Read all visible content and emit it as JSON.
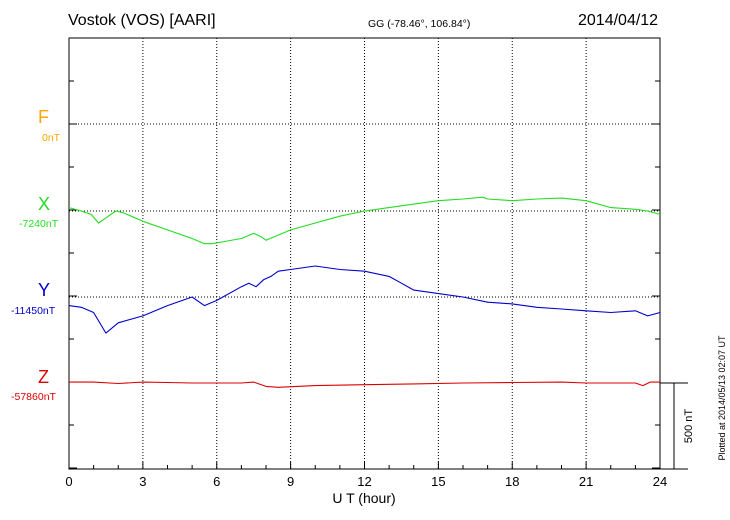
{
  "header": {
    "station": "Vostok (VOS)  [AARI]",
    "coords": "GG (-78.46°, 106.84°)",
    "date": "2014/04/12"
  },
  "colors": {
    "F": "#ffa500",
    "X": "#22dd22",
    "Y": "#0000cc",
    "Z": "#dd0000"
  },
  "channels": [
    {
      "key": "F",
      "label": "F",
      "base": "0nT"
    },
    {
      "key": "X",
      "label": "X",
      "base": "-7240nT"
    },
    {
      "key": "Y",
      "label": "Y",
      "base": "-11450nT"
    },
    {
      "key": "Z",
      "label": "Z",
      "base": "-57860nT"
    }
  ],
  "scale_label": "500 nT",
  "plotted_note": "Plotted at 2014/05/13 02:07 UT",
  "chart_data": {
    "type": "line",
    "xlabel": "U T (hour)",
    "xlim": [
      0,
      24
    ],
    "xticks": [
      0,
      3,
      6,
      9,
      12,
      15,
      18,
      21,
      24
    ],
    "xtick_labels": [
      "0",
      "3",
      "6",
      "9",
      "12",
      "15",
      "18",
      "21",
      "24"
    ],
    "ylim_offset_nT": [
      -250,
      1750
    ],
    "grid": true,
    "series": [
      {
        "name": "X",
        "baseline_nT": -7240,
        "x": [
          0,
          0.5,
          0.9,
          1.2,
          1.5,
          1.9,
          2.2,
          3,
          4,
          5,
          5.5,
          5.8,
          6.2,
          7,
          7.5,
          7.8,
          8,
          8.5,
          9,
          10,
          11,
          12,
          13,
          14,
          15,
          16,
          16.8,
          17,
          18,
          19,
          20,
          21,
          22,
          23,
          23.5,
          24
        ],
        "y_offset_nT": [
          20,
          0,
          -20,
          -70,
          -40,
          0,
          -10,
          -60,
          -110,
          -160,
          -190,
          -190,
          -180,
          -160,
          -130,
          -150,
          -170,
          -140,
          -110,
          -70,
          -30,
          0,
          20,
          40,
          60,
          70,
          80,
          70,
          60,
          70,
          75,
          60,
          20,
          10,
          0,
          -20
        ]
      },
      {
        "name": "Y",
        "baseline_nT": -11450,
        "x": [
          0,
          0.5,
          1,
          1.5,
          2,
          3,
          4,
          5,
          5.5,
          6,
          7,
          7.3,
          7.6,
          7.9,
          8.2,
          8.5,
          9,
          10,
          11,
          12,
          13,
          13.5,
          14,
          15,
          16,
          17,
          18,
          19,
          20,
          21,
          22,
          23,
          23.5,
          24
        ],
        "y_offset_nT": [
          -50,
          -60,
          -90,
          -210,
          -150,
          -110,
          -50,
          0,
          -50,
          -20,
          60,
          80,
          60,
          100,
          120,
          150,
          160,
          180,
          160,
          150,
          120,
          80,
          40,
          20,
          0,
          -30,
          -40,
          -60,
          -70,
          -80,
          -90,
          -80,
          -110,
          -90
        ]
      },
      {
        "name": "Z",
        "baseline_nT": -57860,
        "x": [
          0,
          1,
          2,
          3,
          4,
          5,
          6,
          7,
          7.5,
          8,
          8.5,
          10,
          12,
          14,
          16,
          18,
          20,
          21,
          22,
          23,
          23.3,
          23.6,
          24
        ],
        "y_offset_nT": [
          5,
          5,
          -3,
          5,
          3,
          0,
          0,
          0,
          5,
          -20,
          -25,
          -15,
          -10,
          -5,
          0,
          3,
          5,
          0,
          0,
          0,
          -15,
          5,
          5
        ]
      }
    ]
  }
}
